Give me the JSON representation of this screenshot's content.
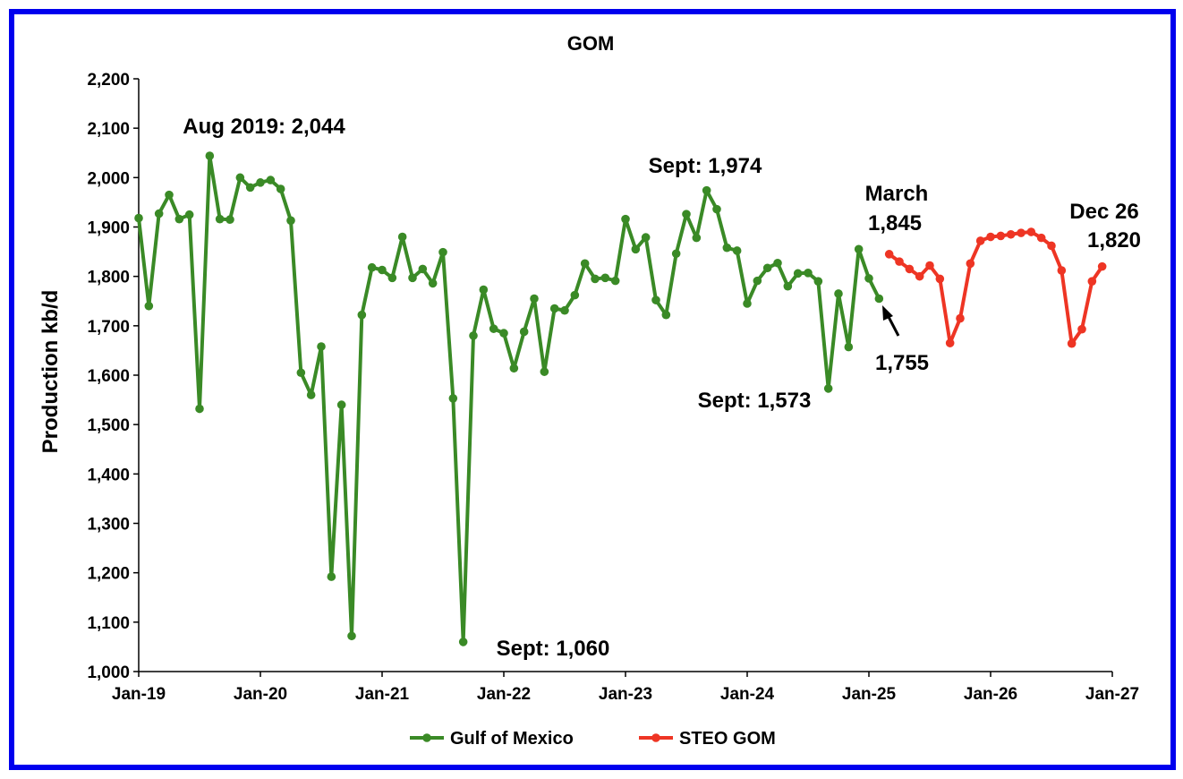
{
  "chart_data": {
    "type": "line",
    "title": "GOM",
    "xlabel": "",
    "ylabel": "Production kb/d",
    "ylim": [
      1000,
      2200
    ],
    "yticks": [
      "1,000",
      "1,100",
      "1,200",
      "1,300",
      "1,400",
      "1,500",
      "1,600",
      "1,700",
      "1,800",
      "1,900",
      "2,000",
      "2,100",
      "2,200"
    ],
    "xticks": [
      "Jan-19",
      "Jan-20",
      "Jan-21",
      "Jan-22",
      "Jan-23",
      "Jan-24",
      "Jan-25",
      "Jan-26",
      "Jan-27"
    ],
    "x_range": [
      "2019-01",
      "2027-01"
    ],
    "grid": false,
    "legend_position": "bottom",
    "series": [
      {
        "name": "Gulf of Mexico",
        "color": "#3a8a26",
        "start": "2019-01",
        "values": [
          1918,
          1740,
          1927,
          1965,
          1916,
          1925,
          1532,
          2044,
          1916,
          1915,
          2000,
          1980,
          1990,
          1995,
          1977,
          1913,
          1605,
          1560,
          1658,
          1192,
          1540,
          1072,
          1722,
          1818,
          1813,
          1797,
          1880,
          1797,
          1815,
          1786,
          1849,
          1553,
          1060,
          1680,
          1773,
          1694,
          1685,
          1614,
          1688,
          1755,
          1607,
          1735,
          1731,
          1762,
          1826,
          1795,
          1797,
          1791,
          1916,
          1855,
          1879,
          1752,
          1722,
          1846,
          1926,
          1878,
          1974,
          1936,
          1858,
          1852,
          1745,
          1791,
          1817,
          1827,
          1780,
          1806,
          1807,
          1790,
          1573,
          1765,
          1657,
          1855,
          1796,
          1755
        ]
      },
      {
        "name": "STEO GOM",
        "color": "#ee3524",
        "start": "2025-03",
        "values": [
          1845,
          1830,
          1815,
          1800,
          1822,
          1795,
          1665,
          1715,
          1826,
          1872,
          1880,
          1882,
          1885,
          1888,
          1890,
          1878,
          1862,
          1812,
          1664,
          1693,
          1790,
          1820
        ]
      }
    ],
    "annotations": [
      {
        "text": "Aug 2019: 2,044"
      },
      {
        "text": "Sept: 1,060"
      },
      {
        "text": "Sept: 1,974"
      },
      {
        "text": "Sept: 1,573"
      },
      {
        "text": "March"
      },
      {
        "text": "1,845"
      },
      {
        "text": "1,755"
      },
      {
        "text": "Dec 26"
      },
      {
        "text": "1,820"
      }
    ]
  }
}
